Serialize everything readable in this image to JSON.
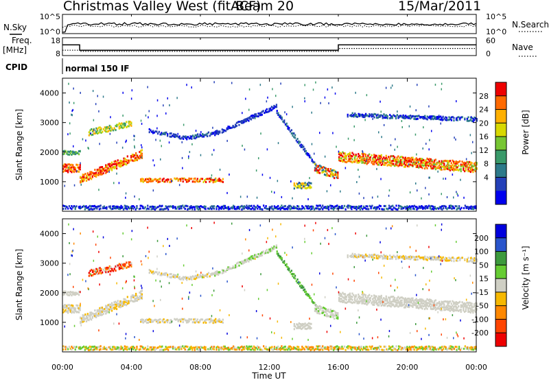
{
  "header": {
    "station": "Christmas Valley West (fitACF)",
    "beam": "Beam 20",
    "date": "15/Mar/2011"
  },
  "left_labels": {
    "nsky": "N.Sky",
    "freq_line1": "Freq.",
    "freq_line2": "[MHz]",
    "cpid": "CPID"
  },
  "right_labels": {
    "nsearch": "N.Search",
    "nave": "Nave"
  },
  "cpid_text": "normal 150 IF",
  "chart_data": [
    {
      "type": "line",
      "name": "noise",
      "ylabel": "",
      "left_ticks": [
        "10^5",
        "10^0"
      ],
      "right_ticks": [
        "10^5",
        "10^0"
      ],
      "series": [
        {
          "name": "N.Sky",
          "style": "solid"
        },
        {
          "name": "N.Search",
          "style": "dotted"
        }
      ]
    },
    {
      "type": "line",
      "name": "frequency_nave",
      "left_ticks": [
        "18",
        "8"
      ],
      "right_ticks": [
        "60",
        "0"
      ],
      "ylim_left": [
        8,
        18
      ],
      "ylim_right": [
        0,
        60
      ],
      "series": [
        {
          "name": "Freq.",
          "style": "solid",
          "points": [
            [
              0,
              14
            ],
            [
              1,
              14
            ],
            [
              1,
              11
            ],
            [
              16,
              11
            ],
            [
              16,
              14
            ],
            [
              24,
              14
            ]
          ]
        },
        {
          "name": "Nave",
          "style": "dotted",
          "points": [
            [
              0,
              18
            ],
            [
              1,
              18
            ],
            [
              1,
              14
            ],
            [
              16,
              14
            ],
            [
              16,
              24
            ],
            [
              24,
              24
            ]
          ]
        }
      ]
    },
    {
      "type": "heatmap",
      "name": "power",
      "ylabel": "Slant Range [km]",
      "ylim": [
        0,
        4500
      ],
      "y_ticks": [
        1000,
        2000,
        3000,
        4000
      ],
      "colorbar": {
        "label": "Power [dB]",
        "ticks": [
          "28",
          "24",
          "20",
          "16",
          "12",
          "8",
          "4"
        ],
        "colors": [
          "#ee0000",
          "#ff6a00",
          "#ffb000",
          "#d8d800",
          "#77c633",
          "#3a9a6a",
          "#2d7a8a",
          "#2440b8",
          "#0000ee"
        ]
      }
    },
    {
      "type": "heatmap",
      "name": "velocity",
      "ylabel": "Slant Range [km]",
      "xlabel": "Time UT",
      "ylim": [
        0,
        4500
      ],
      "y_ticks": [
        1000,
        2000,
        3000,
        4000
      ],
      "x_ticks": [
        "00:00",
        "04:00",
        "08:00",
        "12:00",
        "16:00",
        "20:00",
        "00:00"
      ],
      "colorbar": {
        "label": "Velocity [m s⁻¹]",
        "ticks": [
          "200",
          "100",
          "50",
          "15",
          "-15",
          "-50",
          "-100",
          "-200"
        ],
        "colors": [
          "#0000dd",
          "#2a55cc",
          "#3d9a3d",
          "#66cc33",
          "#cfcfc4",
          "#f6b800",
          "#ff8800",
          "#ff4400",
          "#ee0000"
        ]
      }
    }
  ]
}
